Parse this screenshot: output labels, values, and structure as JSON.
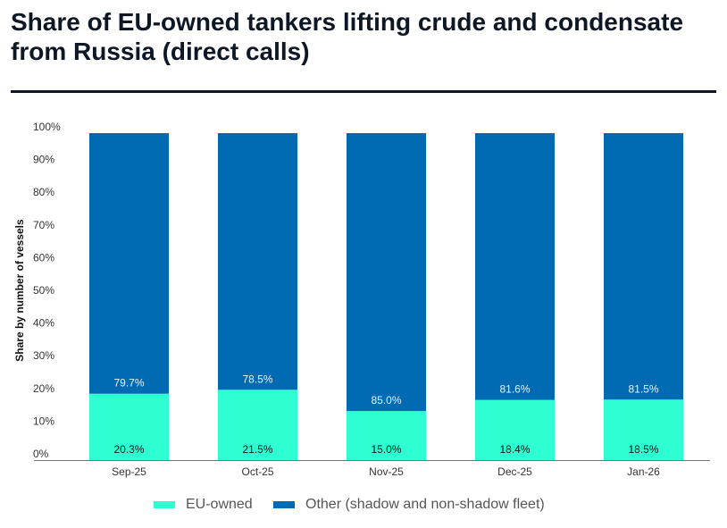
{
  "chart_data": {
    "type": "bar",
    "stacked": true,
    "title": "Share of EU-owned tankers lifting crude and condensate from Russia (direct calls)",
    "xlabel": "",
    "ylabel": "Share by number of vessels",
    "ylim": [
      0,
      100
    ],
    "yticks": [
      "0%",
      "10%",
      "20%",
      "30%",
      "40%",
      "50%",
      "60%",
      "70%",
      "80%",
      "90%",
      "100%"
    ],
    "grid": false,
    "legend_position": "bottom",
    "categories": [
      "Sep-25",
      "Oct-25",
      "Nov-25",
      "Dec-25",
      "Jan-26"
    ],
    "series": [
      {
        "name": "EU-owned",
        "color": "#2effd2",
        "values": [
          20.3,
          21.5,
          15.0,
          18.4,
          18.5
        ],
        "labels": [
          "20.3%",
          "21.5%",
          "15.0%",
          "18.4%",
          "18.5%"
        ]
      },
      {
        "name": "Other (shadow and non-shadow fleet)",
        "color": "#006bb3",
        "values": [
          79.7,
          78.5,
          85.0,
          81.6,
          81.5
        ],
        "labels": [
          "79.7%",
          "78.5%",
          "85.0%",
          "81.6%",
          "81.5%"
        ]
      }
    ]
  }
}
